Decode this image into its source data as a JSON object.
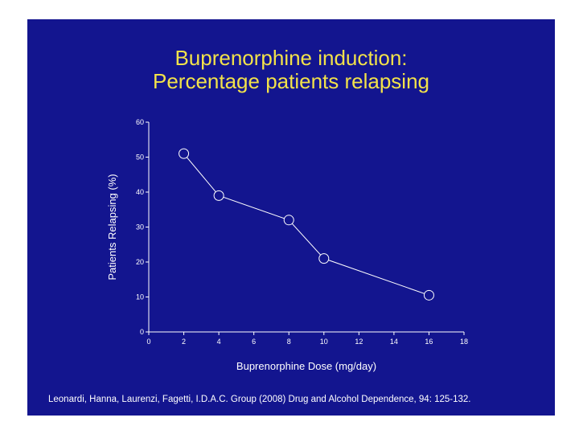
{
  "slide": {
    "background": "#13158f",
    "title_color": "#f2e24a"
  },
  "title": {
    "line1": "Buprenorphine induction:",
    "line2": "Percentage patients relapsing"
  },
  "citation": "Leonardi, Hanna, Laurenzi, Fagetti, I.D.A.C. Group (2008) Drug and Alcohol Dependence, 94: 125-132.",
  "chart_data": {
    "type": "line",
    "title": "Buprenorphine induction: Percentage patients relapsing",
    "xlabel": "Buprenorphine Dose (mg/day)",
    "ylabel": "Patients Relapsing (%)",
    "xlim": [
      0,
      18
    ],
    "ylim": [
      0,
      60
    ],
    "xticks": [
      0,
      2,
      4,
      6,
      8,
      10,
      12,
      14,
      16,
      18
    ],
    "yticks": [
      0,
      10,
      20,
      30,
      40,
      50,
      60
    ],
    "grid": false,
    "series": [
      {
        "name": "Relapse rate",
        "x": [
          2,
          4,
          8,
          10,
          16
        ],
        "y": [
          51,
          39,
          32,
          21,
          10.5
        ]
      }
    ]
  }
}
